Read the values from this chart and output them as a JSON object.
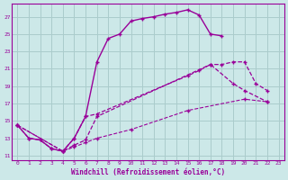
{
  "background_color": "#cce8e8",
  "grid_color": "#aacccc",
  "line_color": "#990099",
  "xlabel": "Windchill (Refroidissement éolien,°C)",
  "xlim": [
    -0.5,
    23.5
  ],
  "ylim": [
    10.5,
    28.5
  ],
  "yticks": [
    11,
    13,
    15,
    17,
    19,
    21,
    23,
    25,
    27
  ],
  "xticks": [
    0,
    1,
    2,
    3,
    4,
    5,
    6,
    7,
    8,
    9,
    10,
    11,
    12,
    13,
    14,
    15,
    16,
    17,
    18,
    19,
    20,
    21,
    22,
    23
  ],
  "series1": [
    [
      0,
      14.5
    ],
    [
      1,
      13.0
    ],
    [
      2,
      12.8
    ],
    [
      3,
      11.8
    ],
    [
      4,
      11.5
    ],
    [
      5,
      13.0
    ],
    [
      6,
      15.5
    ],
    [
      7,
      21.8
    ],
    [
      8,
      24.5
    ],
    [
      9,
      25.0
    ],
    [
      10,
      26.5
    ],
    [
      11,
      26.8
    ],
    [
      12,
      27.0
    ],
    [
      13,
      27.3
    ],
    [
      14,
      27.5
    ],
    [
      15,
      27.8
    ],
    [
      16,
      27.2
    ],
    [
      17,
      25.0
    ],
    [
      18,
      24.8
    ]
  ],
  "series2": [
    [
      0,
      14.5
    ],
    [
      1,
      13.0
    ],
    [
      2,
      12.8
    ],
    [
      3,
      11.8
    ],
    [
      4,
      11.5
    ],
    [
      5,
      13.0
    ],
    [
      6,
      15.5
    ],
    [
      7,
      15.8
    ],
    [
      15,
      20.2
    ],
    [
      16,
      20.8
    ],
    [
      17,
      21.5
    ],
    [
      19,
      19.3
    ],
    [
      20,
      18.5
    ],
    [
      22,
      17.2
    ]
  ],
  "series3": [
    [
      0,
      14.5
    ],
    [
      4,
      11.5
    ],
    [
      5,
      12.2
    ],
    [
      6,
      12.8
    ],
    [
      7,
      15.5
    ],
    [
      17,
      21.5
    ],
    [
      18,
      21.5
    ],
    [
      19,
      21.8
    ],
    [
      20,
      21.8
    ],
    [
      21,
      19.3
    ],
    [
      22,
      18.5
    ]
  ],
  "series4": [
    [
      0,
      14.5
    ],
    [
      4,
      11.5
    ],
    [
      5,
      12.0
    ],
    [
      6,
      12.5
    ],
    [
      7,
      13.0
    ],
    [
      10,
      14.0
    ],
    [
      15,
      16.2
    ],
    [
      20,
      17.5
    ],
    [
      22,
      17.2
    ]
  ]
}
